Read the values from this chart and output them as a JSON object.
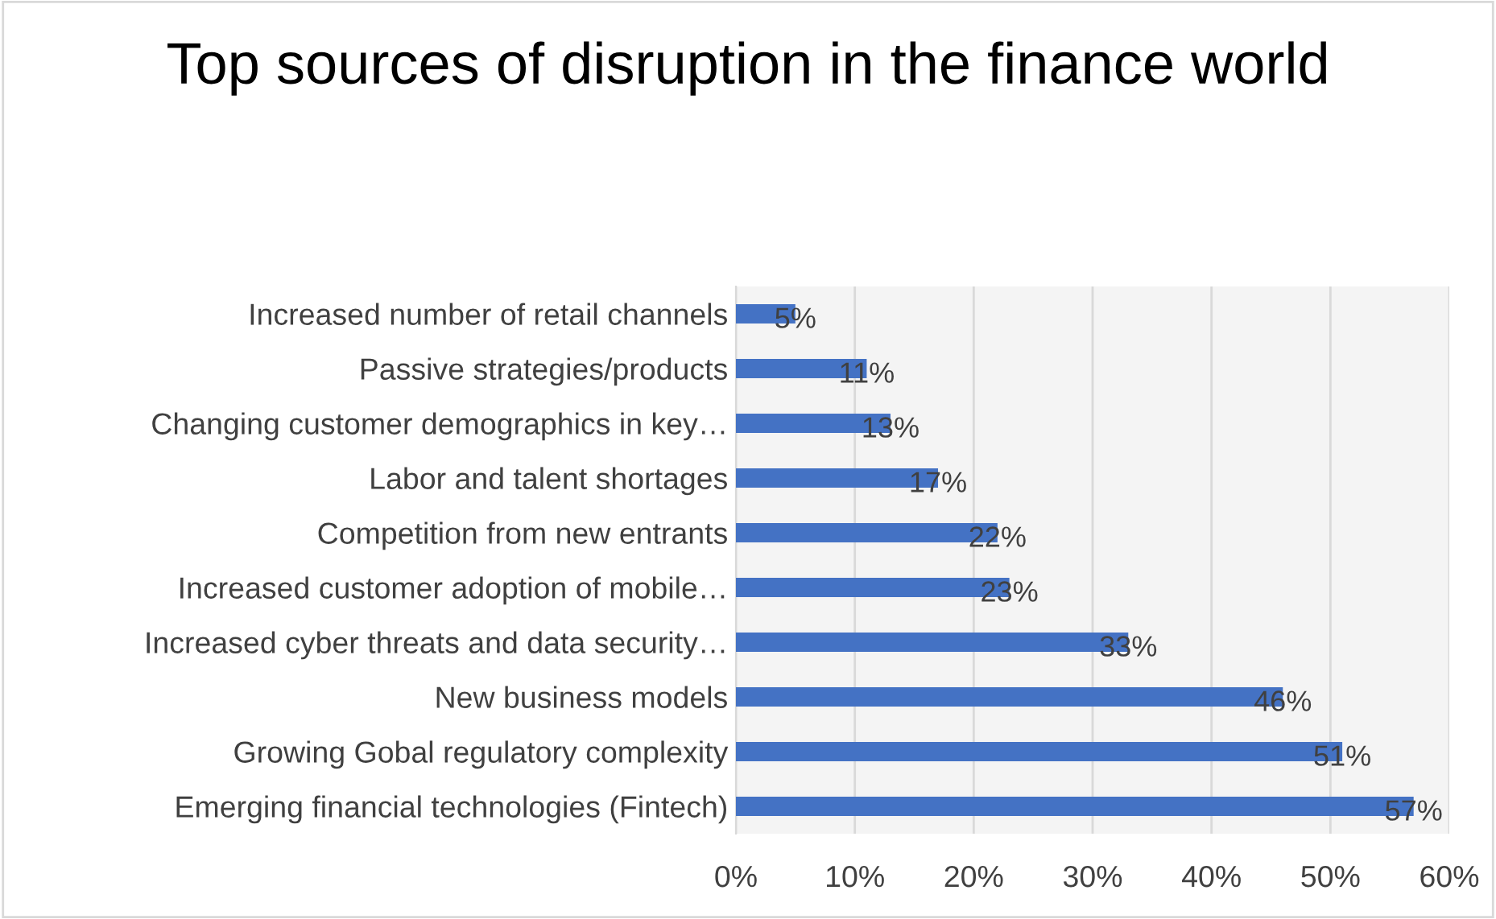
{
  "chart_data": {
    "type": "bar",
    "orientation": "horizontal",
    "title": "Top sources of disruption in the finance world",
    "categories": [
      "Increased number of retail channels",
      "Passive strategies/products",
      "Changing customer demographics in key…",
      "Labor and talent shortages",
      "Competition from new entrants",
      "Increased customer adoption of mobile…",
      "Increased cyber threats and data security…",
      "New business models",
      "Growing Gobal regulatory complexity",
      "Emerging financial technologies (Fintech)"
    ],
    "values": [
      5,
      11,
      13,
      17,
      22,
      23,
      33,
      46,
      51,
      57
    ],
    "color": "#4472c4",
    "value_labels": [
      "5%",
      "11%",
      "13%",
      "17%",
      "22%",
      "23%",
      "33%",
      "46%",
      "51%",
      "57%"
    ],
    "xlim": [
      0,
      60
    ],
    "xticks": [
      {
        "value": 0,
        "label": "0%"
      },
      {
        "value": 10,
        "label": "10%"
      },
      {
        "value": 20,
        "label": "20%"
      },
      {
        "value": 30,
        "label": "30%"
      },
      {
        "value": 40,
        "label": "40%"
      },
      {
        "value": 50,
        "label": "50%"
      },
      {
        "value": 60,
        "label": "60%"
      }
    ],
    "grid": "x"
  }
}
